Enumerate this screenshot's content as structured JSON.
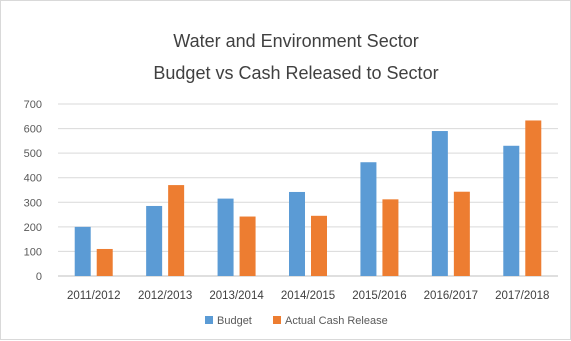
{
  "chart_data": {
    "type": "bar",
    "title": "Water and Environment Sector",
    "subtitle": "Budget vs Cash Released to Sector",
    "xlabel": "",
    "ylabel": "",
    "categories": [
      "2011/2012",
      "2012/2013",
      "2013/2014",
      "2014/2015",
      "2015/2016",
      "2016/2017",
      "2017/2018"
    ],
    "series": [
      {
        "name": "Budget",
        "color": "#5b9bd5",
        "values": [
          200,
          285,
          315,
          342,
          463,
          590,
          530
        ]
      },
      {
        "name": "Actual Cash Release",
        "color": "#ed7d31",
        "values": [
          110,
          370,
          242,
          245,
          312,
          343,
          633
        ]
      }
    ],
    "ylim": [
      0,
      700
    ],
    "yticks": [
      0,
      100,
      200,
      300,
      400,
      500,
      600,
      700
    ],
    "grid": true,
    "legend_position": "bottom-center"
  }
}
